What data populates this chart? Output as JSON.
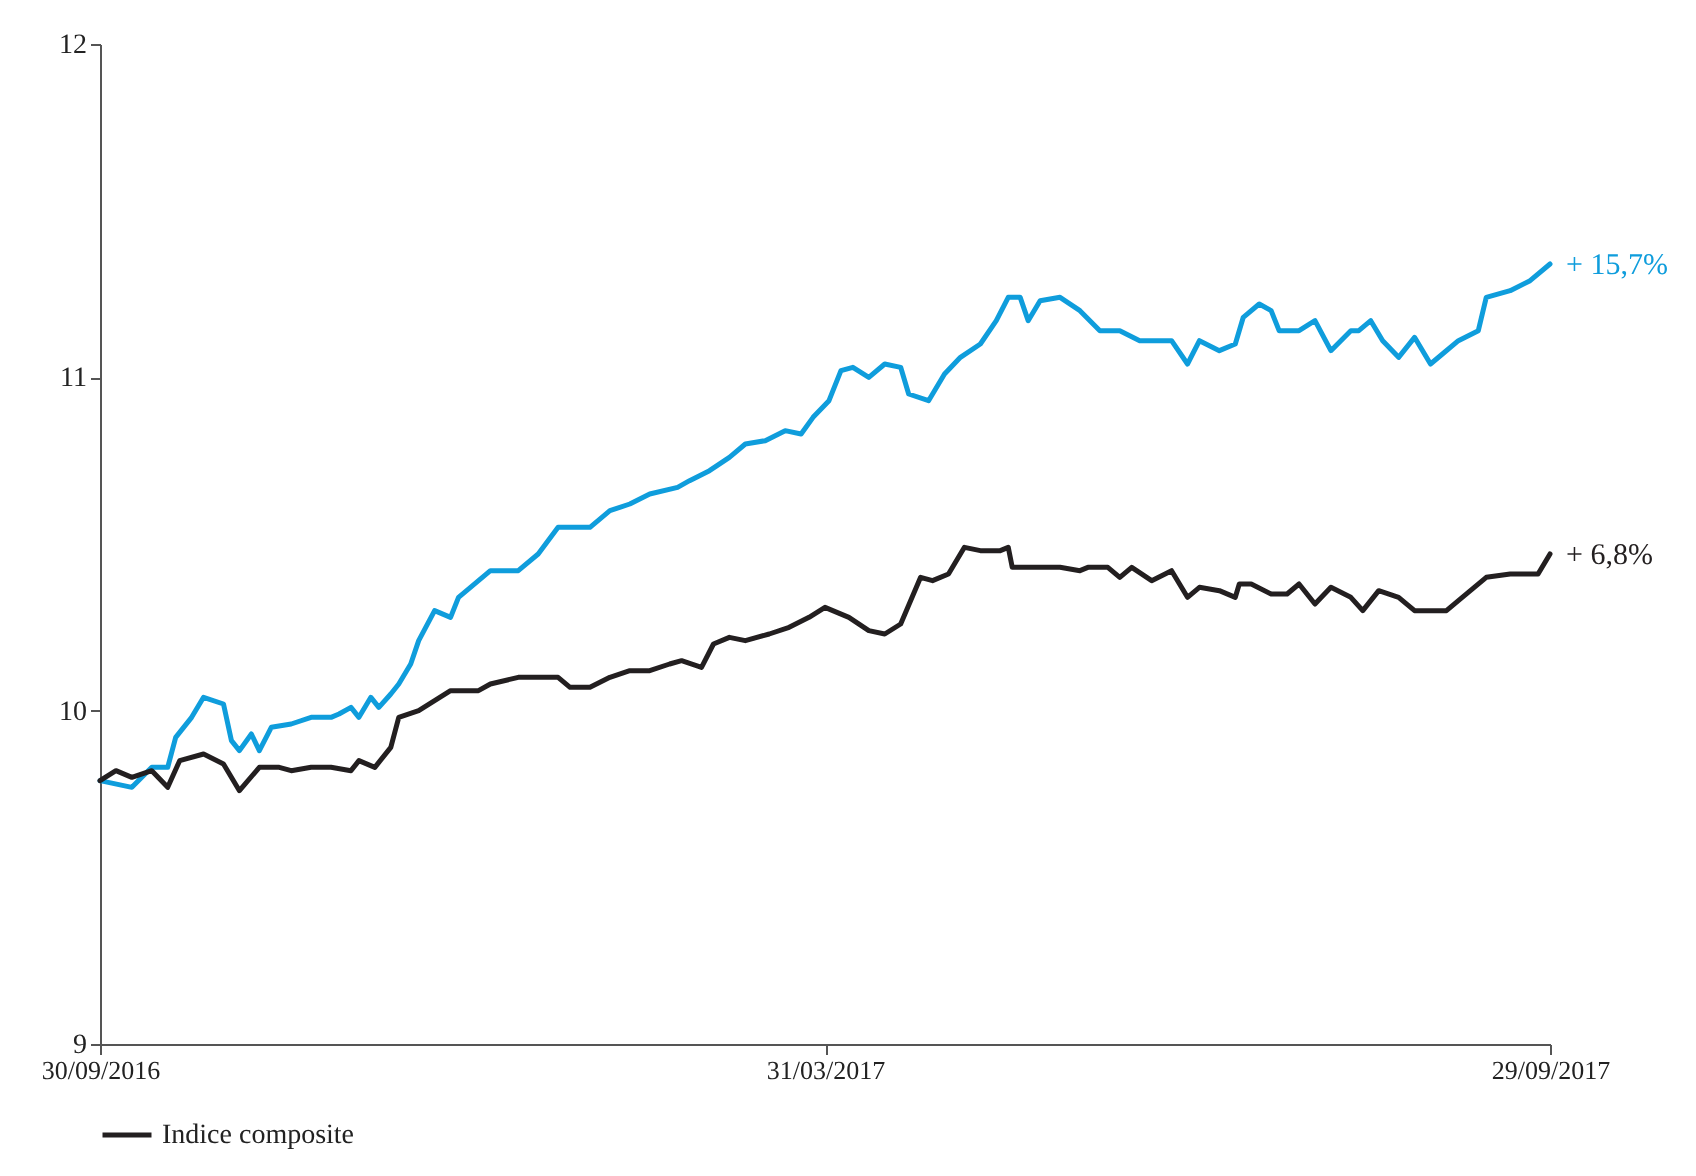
{
  "chart_data": {
    "type": "line",
    "xlim": [
      "2016-09-30",
      "2017-09-29"
    ],
    "ylim": [
      9,
      12
    ],
    "yticks": [
      9,
      10,
      11,
      12
    ],
    "xticks": [
      {
        "value": "2016-09-30",
        "label": "30/09/2016"
      },
      {
        "value": "2017-03-31",
        "label": "31/03/2017"
      },
      {
        "value": "2017-09-29",
        "label": "29/09/2017"
      }
    ],
    "grid": false,
    "legend": "bottom",
    "marker": "none",
    "line_style": "solid",
    "annotations": [
      {
        "text": "+ 15,7%",
        "x": "2017-09-29",
        "y": 11.34
      },
      {
        "text": "+ 6,8%",
        "x": "2017-09-29",
        "y": 10.47
      }
    ],
    "series": [
      {
        "color": "#0f9ddc",
        "x": [
          "2016-09-30",
          "2016-10-08",
          "2016-10-13",
          "2016-10-17",
          "2016-10-19",
          "2016-10-23",
          "2016-10-26",
          "2016-10-31",
          "2016-11-02",
          "2016-11-04",
          "2016-11-07",
          "2016-11-09",
          "2016-11-12",
          "2016-11-17",
          "2016-11-22",
          "2016-11-27",
          "2016-11-29",
          "2016-12-02",
          "2016-12-04",
          "2016-12-07",
          "2016-12-09",
          "2016-12-12",
          "2016-12-14",
          "2016-12-17",
          "2016-12-19",
          "2016-12-23",
          "2016-12-27",
          "2016-12-29",
          "2017-01-01",
          "2017-01-06",
          "2017-01-08",
          "2017-01-13",
          "2017-01-18",
          "2017-01-23",
          "2017-01-31",
          "2017-02-05",
          "2017-02-10",
          "2017-02-15",
          "2017-02-22",
          "2017-02-25",
          "2017-03-02",
          "2017-03-07",
          "2017-03-11",
          "2017-03-16",
          "2017-03-21",
          "2017-03-25",
          "2017-03-28",
          "2017-04-01",
          "2017-04-04",
          "2017-04-07",
          "2017-04-11",
          "2017-04-15",
          "2017-04-19",
          "2017-04-21",
          "2017-04-26",
          "2017-04-30",
          "2017-05-04",
          "2017-05-09",
          "2017-05-13",
          "2017-05-16",
          "2017-05-19",
          "2017-05-21",
          "2017-05-24",
          "2017-05-29",
          "2017-06-03",
          "2017-06-08",
          "2017-06-13",
          "2017-06-18",
          "2017-06-26",
          "2017-06-30",
          "2017-07-03",
          "2017-07-08",
          "2017-07-12",
          "2017-07-14",
          "2017-07-18",
          "2017-07-21",
          "2017-07-23",
          "2017-07-28",
          "2017-08-01",
          "2017-08-05",
          "2017-08-10",
          "2017-08-12",
          "2017-08-15",
          "2017-08-18",
          "2017-08-22",
          "2017-08-26",
          "2017-08-30",
          "2017-09-02",
          "2017-09-06",
          "2017-09-11",
          "2017-09-13",
          "2017-09-19",
          "2017-09-24",
          "2017-09-29"
        ],
        "values": [
          9.79,
          9.77,
          9.83,
          9.83,
          9.92,
          9.98,
          10.04,
          10.02,
          9.91,
          9.88,
          9.93,
          9.88,
          9.95,
          9.96,
          9.98,
          9.98,
          9.99,
          10.01,
          9.98,
          10.04,
          10.01,
          10.05,
          10.08,
          10.14,
          10.21,
          10.3,
          10.28,
          10.34,
          10.37,
          10.42,
          10.42,
          10.42,
          10.47,
          10.55,
          10.55,
          10.6,
          10.62,
          10.65,
          10.67,
          10.69,
          10.72,
          10.76,
          10.8,
          10.81,
          10.84,
          10.83,
          10.88,
          10.93,
          11.02,
          11.03,
          11.0,
          11.04,
          11.03,
          10.95,
          10.93,
          11.01,
          11.06,
          11.1,
          11.17,
          11.24,
          11.24,
          11.17,
          11.23,
          11.24,
          11.2,
          11.14,
          11.14,
          11.11,
          11.11,
          11.04,
          11.11,
          11.08,
          11.1,
          11.18,
          11.22,
          11.2,
          11.14,
          11.14,
          11.17,
          11.08,
          11.14,
          11.14,
          11.17,
          11.11,
          11.06,
          11.12,
          11.04,
          11.07,
          11.11,
          11.14,
          11.24,
          11.26,
          11.29,
          11.34
        ]
      },
      {
        "name": "Indice composite",
        "color": "#231f20",
        "x": [
          "2016-09-30",
          "2016-10-04",
          "2016-10-08",
          "2016-10-13",
          "2016-10-17",
          "2016-10-20",
          "2016-10-26",
          "2016-10-31",
          "2016-11-04",
          "2016-11-09",
          "2016-11-14",
          "2016-11-17",
          "2016-11-22",
          "2016-11-27",
          "2016-12-02",
          "2016-12-04",
          "2016-12-08",
          "2016-12-12",
          "2016-12-14",
          "2016-12-19",
          "2016-12-23",
          "2016-12-27",
          "2017-01-03",
          "2017-01-06",
          "2017-01-13",
          "2017-01-18",
          "2017-01-23",
          "2017-01-26",
          "2017-01-31",
          "2017-02-05",
          "2017-02-10",
          "2017-02-15",
          "2017-02-20",
          "2017-02-23",
          "2017-02-28",
          "2017-03-03",
          "2017-03-07",
          "2017-03-11",
          "2017-03-17",
          "2017-03-22",
          "2017-03-27",
          "2017-03-31",
          "2017-04-06",
          "2017-04-11",
          "2017-04-15",
          "2017-04-19",
          "2017-04-24",
          "2017-04-27",
          "2017-05-01",
          "2017-05-05",
          "2017-05-09",
          "2017-05-14",
          "2017-05-16",
          "2017-05-17",
          "2017-05-21",
          "2017-05-29",
          "2017-06-03",
          "2017-06-05",
          "2017-06-10",
          "2017-06-13",
          "2017-06-16",
          "2017-06-21",
          "2017-06-26",
          "2017-06-30",
          "2017-07-03",
          "2017-07-08",
          "2017-07-12",
          "2017-07-13",
          "2017-07-16",
          "2017-07-21",
          "2017-07-25",
          "2017-07-28",
          "2017-08-01",
          "2017-08-05",
          "2017-08-10",
          "2017-08-13",
          "2017-08-17",
          "2017-08-22",
          "2017-08-26",
          "2017-08-29",
          "2017-09-03",
          "2017-09-06",
          "2017-09-13",
          "2017-09-19",
          "2017-09-26",
          "2017-09-29"
        ],
        "values": [
          9.79,
          9.82,
          9.8,
          9.82,
          9.77,
          9.85,
          9.87,
          9.84,
          9.76,
          9.83,
          9.83,
          9.82,
          9.83,
          9.83,
          9.82,
          9.85,
          9.83,
          9.89,
          9.98,
          10.0,
          10.03,
          10.06,
          10.06,
          10.08,
          10.1,
          10.1,
          10.1,
          10.07,
          10.07,
          10.1,
          10.12,
          10.12,
          10.14,
          10.15,
          10.13,
          10.2,
          10.22,
          10.21,
          10.23,
          10.25,
          10.28,
          10.31,
          10.28,
          10.24,
          10.23,
          10.26,
          10.4,
          10.39,
          10.41,
          10.49,
          10.48,
          10.48,
          10.49,
          10.43,
          10.43,
          10.43,
          10.42,
          10.43,
          10.43,
          10.4,
          10.43,
          10.39,
          10.42,
          10.34,
          10.37,
          10.36,
          10.34,
          10.38,
          10.38,
          10.35,
          10.35,
          10.38,
          10.32,
          10.37,
          10.34,
          10.3,
          10.36,
          10.34,
          10.3,
          10.3,
          10.3,
          10.33,
          10.4,
          10.41,
          10.41,
          10.47
        ]
      }
    ]
  }
}
